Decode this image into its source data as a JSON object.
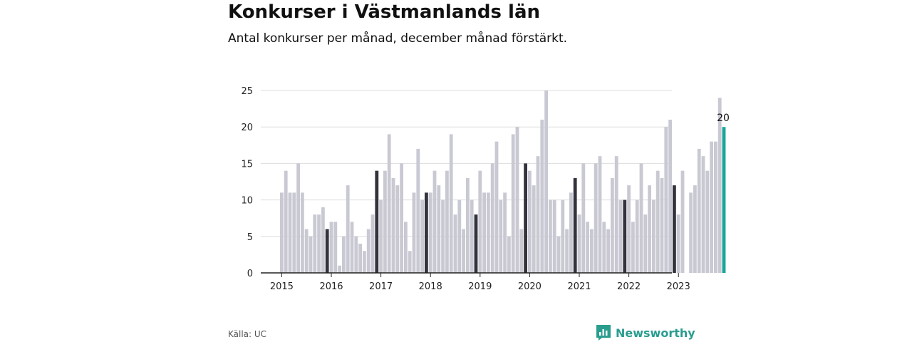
{
  "title": "Konkurser i Västmanlands län",
  "subtitle": "Antal konkurser per månad, december månad förstärkt.",
  "source": "Källa: UC",
  "brand": {
    "name": "Newsworthy",
    "icon": "bar-chart-logo-icon"
  },
  "colors": {
    "bar": "#c9c9d3",
    "december_bar": "#33333d",
    "latest_bar": "#1aa39a",
    "grid": "#dddddd",
    "axis": "#222222",
    "brand": "#2a9d8f"
  },
  "chart_data": {
    "type": "bar",
    "title": "Konkurser i Västmanlands län",
    "subtitle": "Antal konkurser per månad, december månad förstärkt.",
    "xlabel": "",
    "ylabel": "",
    "ylim": [
      0,
      25
    ],
    "yticks": [
      0,
      5,
      10,
      15,
      20,
      25
    ],
    "grid": true,
    "start": "2015-01",
    "x_tick_labels": [
      "2015",
      "2016",
      "2017",
      "2018",
      "2019",
      "2020",
      "2021",
      "2022",
      "2023"
    ],
    "highlight": "december",
    "annotation": {
      "label": "20",
      "month": "2023-12"
    },
    "values": [
      11,
      14,
      11,
      11,
      15,
      11,
      6,
      5,
      8,
      8,
      9,
      6,
      7,
      7,
      1,
      5,
      12,
      7,
      5,
      4,
      3,
      6,
      8,
      14,
      10,
      14,
      19,
      13,
      12,
      15,
      7,
      3,
      11,
      17,
      10,
      11,
      11,
      14,
      12,
      10,
      14,
      19,
      8,
      10,
      6,
      13,
      10,
      8,
      14,
      11,
      11,
      15,
      18,
      10,
      11,
      5,
      19,
      20,
      6,
      15,
      14,
      12,
      16,
      21,
      25,
      10,
      10,
      5,
      10,
      6,
      11,
      13,
      8,
      15,
      7,
      6,
      15,
      16,
      7,
      6,
      13,
      16,
      10,
      10,
      12,
      7,
      10,
      15,
      8,
      12,
      10,
      14,
      13,
      20,
      21,
      12,
      8,
      14,
      0,
      11,
      12,
      17,
      16,
      14,
      18,
      18,
      24,
      20
    ]
  }
}
